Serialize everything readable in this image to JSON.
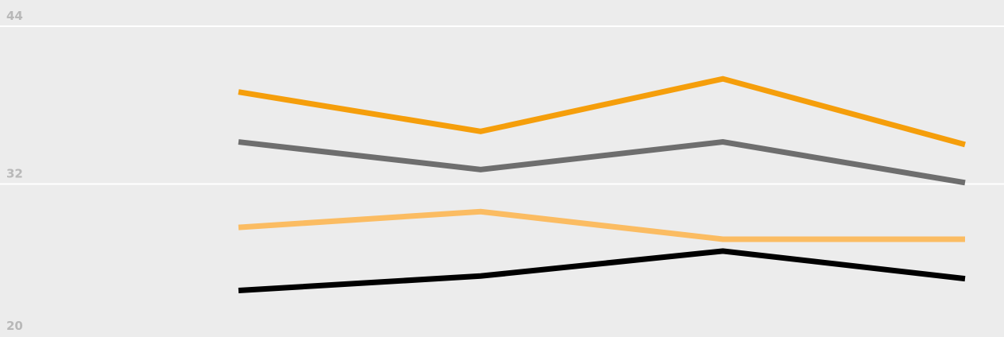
{
  "chart_data": {
    "type": "line",
    "title": "",
    "xlabel": "",
    "ylabel": "",
    "ylim": [
      20,
      44
    ],
    "y_ticks": [
      20,
      32,
      44
    ],
    "y_tick_labels": [
      "20",
      "32",
      "44"
    ],
    "grid": true,
    "x": [
      1,
      2,
      3,
      4
    ],
    "series": [
      {
        "color": "#f59e0b",
        "values": [
          39.0,
          36.0,
          40.0,
          35.0
        ]
      },
      {
        "color": "#6e6e6e",
        "values": [
          35.2,
          33.1,
          35.2,
          32.1
        ]
      },
      {
        "color": "#fbbc62",
        "values": [
          28.7,
          29.9,
          27.8,
          27.8
        ]
      },
      {
        "color": "#000000",
        "values": [
          23.9,
          25.0,
          26.9,
          24.8
        ]
      }
    ]
  }
}
